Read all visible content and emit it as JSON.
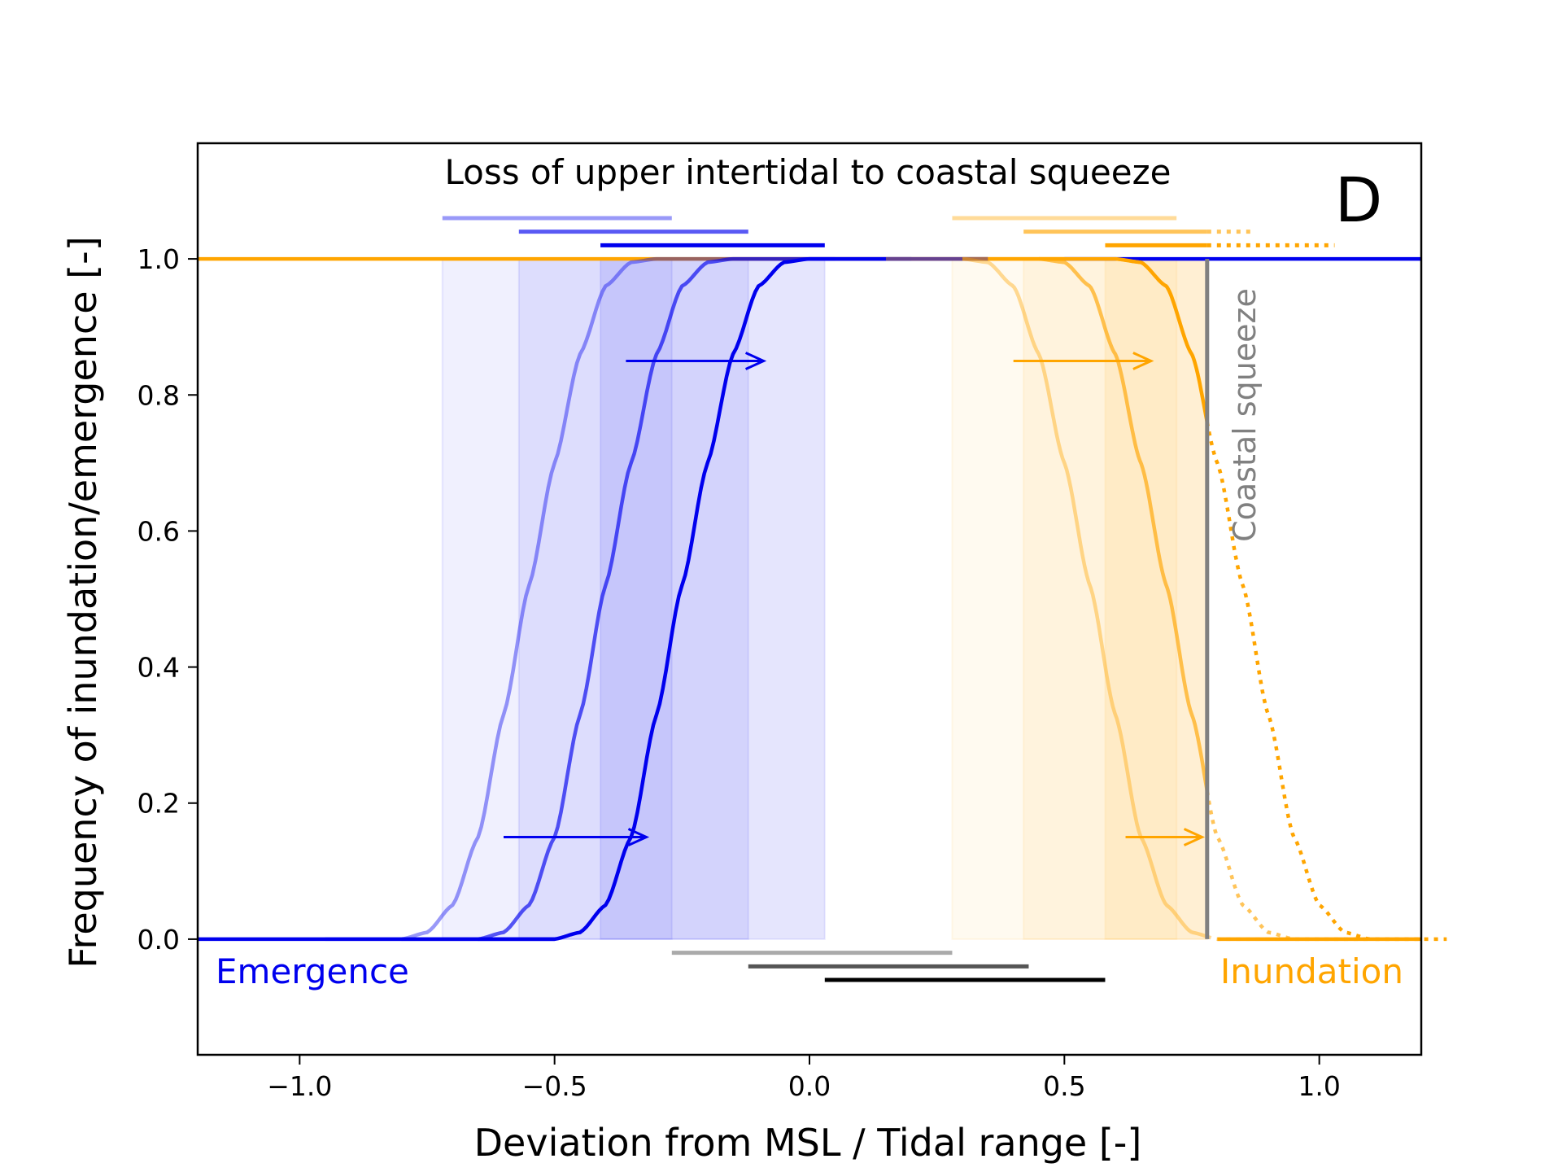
{
  "chart_data": {
    "type": "line",
    "title": "Loss of upper intertidal to coastal squeeze",
    "panel_label": "D",
    "xlabel": "Deviation from MSL / Tidal range [-]",
    "ylabel": "Frequency of inundation/emergence [-]",
    "xlim": [
      -1.2,
      1.2
    ],
    "ylim": [
      -0.17,
      1.17
    ],
    "xticks": [
      -1.0,
      -0.5,
      0.0,
      0.5,
      1.0
    ],
    "xtick_labels": [
      "−1.0",
      "−0.5",
      "0.0",
      "0.5",
      "1.0"
    ],
    "yticks": [
      0.0,
      0.2,
      0.4,
      0.6,
      0.8,
      1.0
    ],
    "ytick_labels": [
      "0.0",
      "0.2",
      "0.4",
      "0.6",
      "0.8",
      "1.0"
    ],
    "grid": false,
    "colors": {
      "emergence": "#0000ee",
      "inundation": "#ffa500",
      "squeeze": "#808080",
      "gray_bars": [
        "#aaaaaa",
        "#555555",
        "#000000"
      ]
    },
    "annotations": {
      "emergence_label": "Emergence",
      "inundation_label": "Inundation",
      "squeeze_label": "Coastal squeeze"
    },
    "squeeze_x": 0.78,
    "baseline": {
      "emergence_top_from_x": 0.5,
      "inundation_top_until_x": 0.5
    },
    "emergence_series": [
      {
        "shift": -0.15,
        "opacity": 0.4,
        "shade_range": [
          -0.72,
          -0.27
        ],
        "bar_y": 1.06
      },
      {
        "shift": 0.0,
        "opacity": 0.65,
        "shade_range": [
          -0.57,
          -0.12
        ],
        "bar_y": 1.04
      },
      {
        "shift": 0.15,
        "opacity": 1.0,
        "shade_range": [
          -0.41,
          0.03
        ],
        "bar_y": 1.02
      }
    ],
    "inundation_series": [
      {
        "shift": -0.15,
        "opacity": 0.4,
        "shade_range": [
          0.28,
          0.72
        ],
        "bar_y": 1.06,
        "dotted_bar_to": null
      },
      {
        "shift": 0.0,
        "opacity": 0.65,
        "shade_range": [
          0.42,
          0.78
        ],
        "bar_y": 1.04,
        "dotted_bar_to": 0.87
      },
      {
        "shift": 0.15,
        "opacity": 1.0,
        "shade_range": [
          0.58,
          0.78
        ],
        "bar_y": 1.02,
        "dotted_bar_to": 1.03
      }
    ],
    "gray_bars": [
      {
        "range": [
          -0.27,
          0.28
        ],
        "y": -0.02
      },
      {
        "range": [
          -0.12,
          0.43
        ],
        "y": -0.04
      },
      {
        "range": [
          0.03,
          0.58
        ],
        "y": -0.06
      }
    ],
    "arrows": [
      {
        "from": [
          -0.36,
          0.85
        ],
        "to": [
          -0.09,
          0.85
        ],
        "series": "emergence"
      },
      {
        "from": [
          -0.6,
          0.15
        ],
        "to": [
          -0.32,
          0.15
        ],
        "series": "emergence"
      },
      {
        "from": [
          0.4,
          0.85
        ],
        "to": [
          0.67,
          0.85
        ],
        "series": "inundation"
      },
      {
        "from": [
          0.62,
          0.15
        ],
        "to": [
          0.77,
          0.15
        ],
        "series": "inundation"
      }
    ]
  }
}
